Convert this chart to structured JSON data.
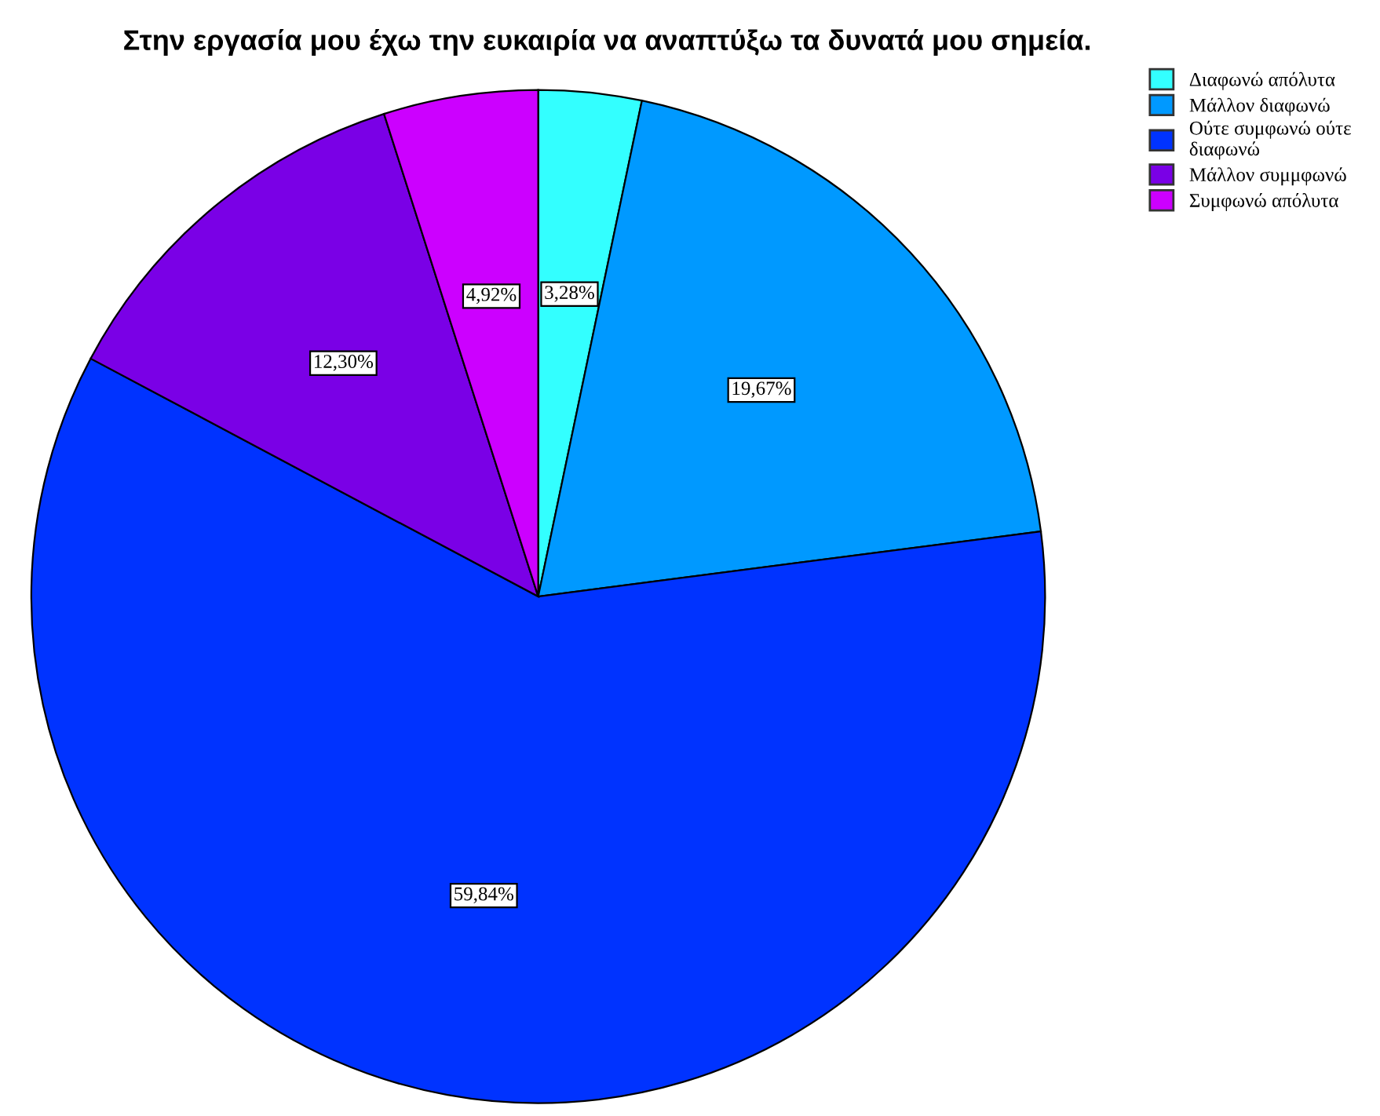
{
  "chart_data": {
    "type": "pie",
    "title": "Στην εργασία μου έχω την ευκαιρία να αναπτύξω τα δυνατά μου σημεία.",
    "categories": [
      "Διαφωνώ απόλυτα",
      "Μάλλον διαφωνώ",
      "Ούτε συμφωνώ ούτε\nδιαφωνώ",
      "Μάλλον συμμφωνώ",
      "Συμφωνώ απόλυτα"
    ],
    "values": [
      3.28,
      19.67,
      59.84,
      12.3,
      4.92
    ],
    "colors": [
      "#33ffff",
      "#0099ff",
      "#0033ff",
      "#7a00e6",
      "#cc00ff"
    ],
    "value_labels": [
      "3,28%",
      "19,67%",
      "59,84%",
      "12,30%",
      "4,92%"
    ],
    "legend": "top right"
  }
}
